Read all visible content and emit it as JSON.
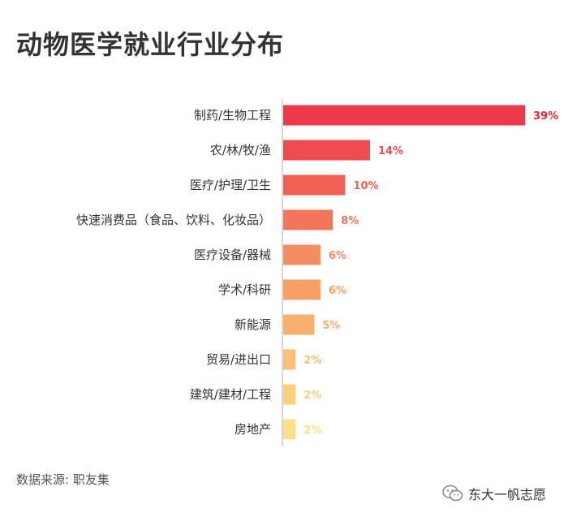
{
  "header": {
    "title": "动物医学就业行业分布"
  },
  "footer": {
    "source": "数据来源: 职友集",
    "watermark": "东大一帆志愿"
  },
  "icons": {
    "watermark": "wechat-icon"
  },
  "chart_data": {
    "type": "bar",
    "orientation": "horizontal",
    "title": "动物医学就业行业分布",
    "categories": [
      "制药/生物工程",
      "农/林/牧/渔",
      "医疗/护理/卫生",
      "快速消费品（食品、饮料、化妆品）",
      "医疗设备/器械",
      "学术/科研",
      "新能源",
      "贸易/进出口",
      "建筑/建材/工程",
      "房地产"
    ],
    "values": [
      39,
      14,
      10,
      8,
      6,
      6,
      5,
      2,
      2,
      2
    ],
    "value_labels": [
      "39%",
      "14%",
      "10%",
      "8%",
      "6%",
      "6%",
      "5%",
      "2%",
      "2%",
      "2%"
    ],
    "colors": [
      "#ec3a4b",
      "#ef4c50",
      "#f16053",
      "#f3765c",
      "#f68c61",
      "#f89f66",
      "#f9b06c",
      "#fbc073",
      "#fcd07b",
      "#fde084"
    ],
    "xlim": [
      0,
      39
    ],
    "grid": false,
    "legend": "none"
  }
}
